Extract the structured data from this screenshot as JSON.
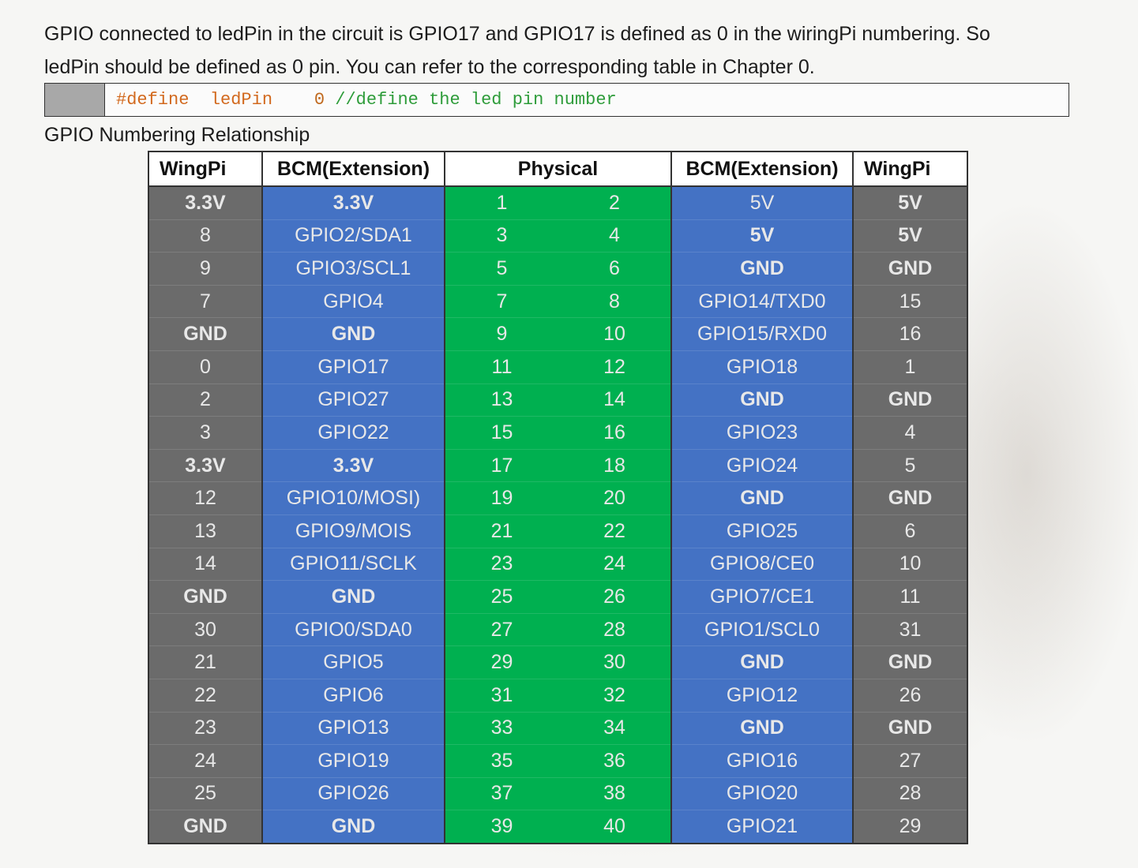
{
  "paragraph": {
    "line1": "GPIO connected to ledPin in the circuit is GPIO17 and GPIO17 is defined as 0 in the wiringPi numbering. So",
    "line2": "ledPin should be defined as 0 pin. You can refer to the corresponding table in Chapter 0."
  },
  "code": {
    "directive": "#define",
    "name": "ledPin",
    "value": "0",
    "comment": "//define the led pin number"
  },
  "section_title": "GPIO Numbering Relationship",
  "table": {
    "headers": [
      "WingPi",
      "BCM(Extension)",
      "Physical",
      "BCM(Extension)",
      "WingPi"
    ],
    "rows": [
      [
        "3.3V",
        "3.3V",
        "1",
        "2",
        "5V",
        "5V"
      ],
      [
        "8",
        "GPIO2/SDA1",
        "3",
        "4",
        "5V",
        "5V"
      ],
      [
        "9",
        "GPIO3/SCL1",
        "5",
        "6",
        "GND",
        "GND"
      ],
      [
        "7",
        "GPIO4",
        "7",
        "8",
        "GPIO14/TXD0",
        "15"
      ],
      [
        "GND",
        "GND",
        "9",
        "10",
        "GPIO15/RXD0",
        "16"
      ],
      [
        "0",
        "GPIO17",
        "11",
        "12",
        "GPIO18",
        "1"
      ],
      [
        "2",
        "GPIO27",
        "13",
        "14",
        "GND",
        "GND"
      ],
      [
        "3",
        "GPIO22",
        "15",
        "16",
        "GPIO23",
        "4"
      ],
      [
        "3.3V",
        "3.3V",
        "17",
        "18",
        "GPIO24",
        "5"
      ],
      [
        "12",
        "GPIO10/MOSI)",
        "19",
        "20",
        "GND",
        "GND"
      ],
      [
        "13",
        "GPIO9/MOIS",
        "21",
        "22",
        "GPIO25",
        "6"
      ],
      [
        "14",
        "GPIO11/SCLK",
        "23",
        "24",
        "GPIO8/CE0",
        "10"
      ],
      [
        "GND",
        "GND",
        "25",
        "26",
        "GPIO7/CE1",
        "11"
      ],
      [
        "30",
        "GPIO0/SDA0",
        "27",
        "28",
        "GPIO1/SCL0",
        "31"
      ],
      [
        "21",
        "GPIO5",
        "29",
        "30",
        "GND",
        "GND"
      ],
      [
        "22",
        "GPIO6",
        "31",
        "32",
        "GPIO12",
        "26"
      ],
      [
        "23",
        "GPIO13",
        "33",
        "34",
        "GND",
        "GND"
      ],
      [
        "24",
        "GPIO19",
        "35",
        "36",
        "GPIO16",
        "27"
      ],
      [
        "25",
        "GPIO26",
        "37",
        "38",
        "GPIO20",
        "28"
      ],
      [
        "GND",
        "GND",
        "39",
        "40",
        "GPIO21",
        "29"
      ]
    ],
    "bold_cells": [
      [
        0,
        0
      ],
      [
        0,
        1
      ],
      [
        0,
        5
      ],
      [
        1,
        4
      ],
      [
        1,
        5
      ],
      [
        2,
        4
      ],
      [
        2,
        5
      ],
      [
        4,
        0
      ],
      [
        4,
        1
      ],
      [
        6,
        4
      ],
      [
        6,
        5
      ],
      [
        8,
        0
      ],
      [
        8,
        1
      ],
      [
        9,
        4
      ],
      [
        9,
        5
      ],
      [
        12,
        0
      ],
      [
        12,
        1
      ],
      [
        14,
        4
      ],
      [
        14,
        5
      ],
      [
        16,
        4
      ],
      [
        16,
        5
      ],
      [
        19,
        0
      ],
      [
        19,
        1
      ]
    ]
  },
  "colors": {
    "wiringpi_column": "#6b6b6b",
    "bcm_column": "#4472c4",
    "physical_column": "#00b050"
  }
}
